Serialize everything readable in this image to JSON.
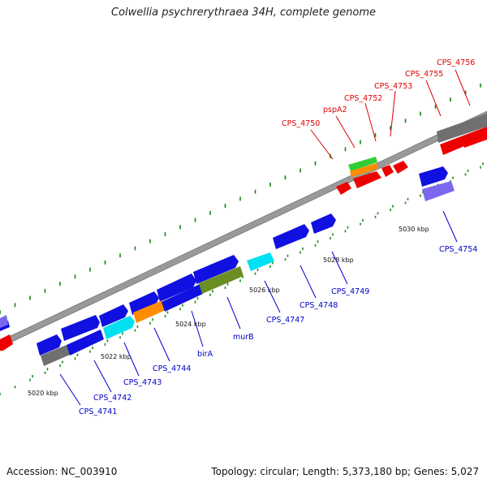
{
  "title": "Colwellia psychrerythraea 34H, complete genome",
  "accession": "Accession: NC_003910",
  "summary": "Topology: circular; Length: 5,373,180 bp; Genes: 5,027",
  "kbp_labels": [
    "5020 kbp",
    "5022 kbp",
    "5024 kbp",
    "5026 kbp",
    "5028 kbp",
    "5030 kbp"
  ],
  "colors": {
    "backbone": "#909090",
    "tick": "#1e8a1e",
    "blue": "#1010e0",
    "cyan": "#00e0f0",
    "orange": "#ff8c00",
    "olive": "#6b8e23",
    "gray": "#707070",
    "red": "#ee0000",
    "green": "#33cc33",
    "lavender": "#7b68ee",
    "label_red": "#e00000",
    "label_blue": "#0000cc"
  },
  "gene_labels_top": [
    "CPS_4750",
    "pspA2",
    "CPS_4752",
    "CPS_4753",
    "CPS_4755",
    "CPS_4756"
  ],
  "gene_labels_bottom": [
    "CPS_4741",
    "CPS_4742",
    "CPS_4743",
    "CPS_4744",
    "birA",
    "murB",
    "CPS_4747",
    "CPS_4748",
    "CPS_4749",
    "CPS_4754"
  ]
}
